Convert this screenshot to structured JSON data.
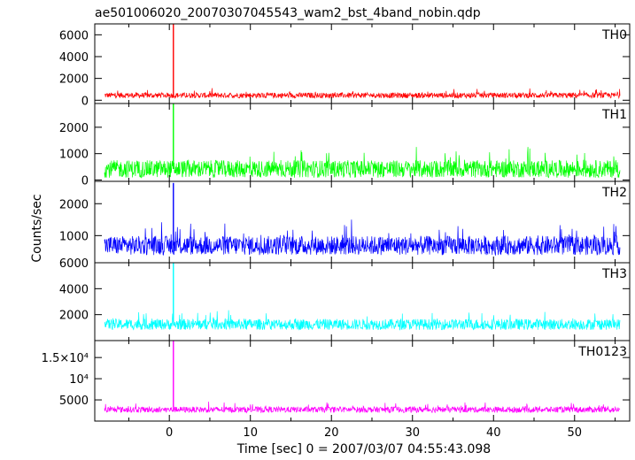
{
  "chart_data": {
    "type": "line",
    "title": "ae501006020_20070307045543_wam2_bst_4band_nobin.qdp",
    "xlabel": "Time [sec] 0 = 2007/03/07 04:55:43.098",
    "ylabel": "Counts/sec",
    "xlim": [
      -9.2,
      56.8
    ],
    "x_ticks": [
      0,
      10,
      20,
      30,
      40,
      50
    ],
    "x_tick_labels": [
      "0",
      "10",
      "20",
      "30",
      "40",
      "50"
    ],
    "x_start": -8.0,
    "x_end": 55.6,
    "burst_time": 0.5,
    "panels": [
      {
        "name": "TH0",
        "color": "#ff0000",
        "ylim": [
          -300,
          7000
        ],
        "yticks": [
          0,
          2000,
          4000,
          6000
        ],
        "ytick_labels": [
          "0",
          "2000",
          "4000",
          "6000"
        ],
        "baseline": 450,
        "noise": 250,
        "burst_peak": 7000
      },
      {
        "name": "TH1",
        "color": "#00ff00",
        "ylim": [
          -50,
          2900
        ],
        "yticks": [
          0,
          1000,
          2000
        ],
        "ytick_labels": [
          "0",
          "1000",
          "2000"
        ],
        "baseline": 420,
        "noise": 330,
        "burst_peak": 2900
      },
      {
        "name": "TH2",
        "color": "#0000ff",
        "ylim": [
          150,
          2700
        ],
        "yticks": [
          1000,
          2000
        ],
        "ytick_labels": [
          "1000",
          "2000"
        ],
        "baseline": 690,
        "noise": 300,
        "burst_peak": 2650
      },
      {
        "name": "TH3",
        "color": "#00ffff",
        "ylim": [
          0,
          6000
        ],
        "yticks": [
          2000,
          4000,
          6000
        ],
        "ytick_labels": [
          "2000",
          "4000",
          "6000"
        ],
        "baseline": 1250,
        "noise": 420,
        "burst_peak": 6000
      },
      {
        "name": "TH0123",
        "color": "#ff00ff",
        "ylim": [
          0,
          19000
        ],
        "yticks": [
          5000,
          10000,
          15000
        ],
        "ytick_labels": [
          "5000",
          "10⁴",
          "1.5×10⁴"
        ],
        "baseline": 2700,
        "noise": 700,
        "burst_peak": 19000
      }
    ]
  }
}
